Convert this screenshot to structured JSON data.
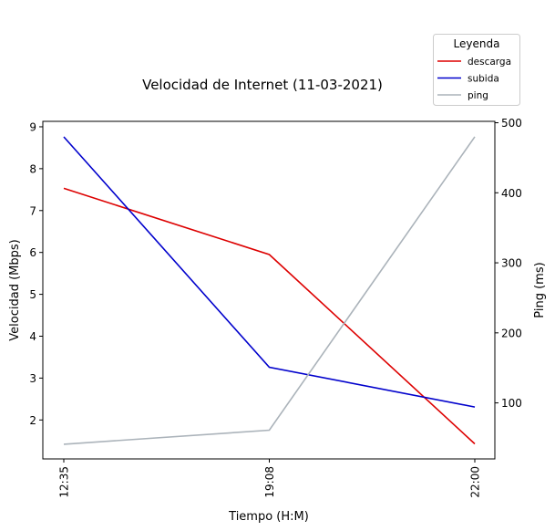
{
  "chart_data": {
    "type": "line",
    "title": "Velocidad de Internet (11-03-2021)",
    "xlabel": "Tiempo (H:M)",
    "ylabel": "Velocidad (Mbps)",
    "y2label": "Ping (ms)",
    "categories": [
      "12:35",
      "19:08",
      "22:00"
    ],
    "ylim": [
      1.07,
      9.13
    ],
    "y2lim": [
      20,
      502
    ],
    "yticks": [
      2,
      3,
      4,
      5,
      6,
      7,
      8,
      9
    ],
    "y2ticks": [
      100,
      200,
      300,
      400,
      500
    ],
    "grid": false,
    "legend_title": "Leyenda",
    "legend_position": "top-right, above plot",
    "series": [
      {
        "name": "descarga",
        "axis": "left",
        "color": "#dd0000",
        "values": [
          7.53,
          5.95,
          1.43
        ]
      },
      {
        "name": "subida",
        "axis": "left",
        "color": "#0000cc",
        "values": [
          8.76,
          3.26,
          2.31
        ]
      },
      {
        "name": "ping",
        "axis": "right",
        "color": "#abb3ba",
        "values": [
          41,
          61,
          480
        ]
      }
    ]
  }
}
